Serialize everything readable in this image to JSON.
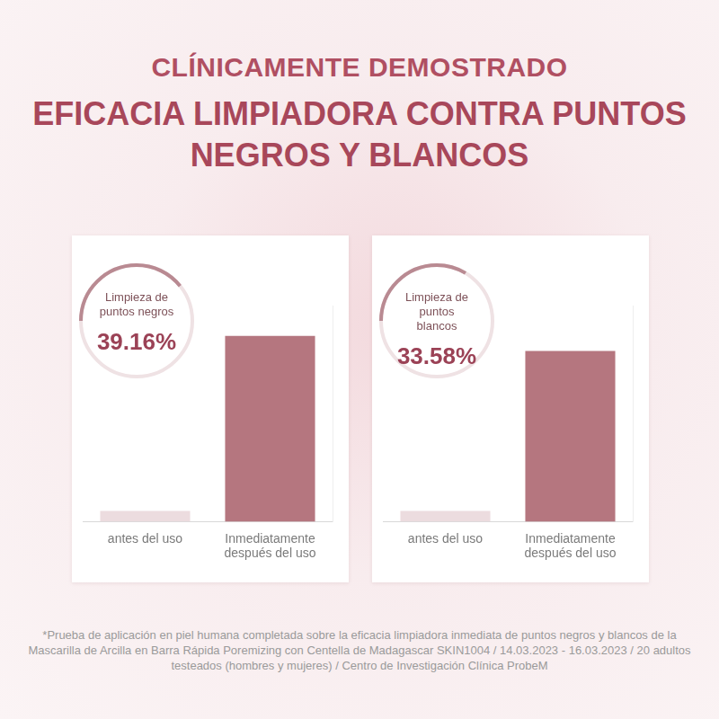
{
  "header": {
    "kicker": "CLÍNICAMENTE DEMOSTRADO",
    "title": "EFICACIA LIMPIADORA CONTRA PUNTOS NEGROS Y BLANCOS"
  },
  "chart_data": [
    {
      "type": "bar",
      "categories": [
        "antes del uso",
        "Inmediatamente después del uso"
      ],
      "values": [
        5,
        86
      ],
      "colors": [
        "#ecdcdf",
        "#b5767f"
      ],
      "ylim": [
        0,
        100
      ],
      "tick_labels": "x",
      "grid": false,
      "annotation": {
        "text": "Limpieza de puntos negros",
        "value": 39.16,
        "label": "39.16%"
      }
    },
    {
      "type": "bar",
      "categories": [
        "antes del uso",
        "Inmediatamente después del uso"
      ],
      "values": [
        5,
        79
      ],
      "colors": [
        "#ecdcdf",
        "#b5767f"
      ],
      "ylim": [
        0,
        100
      ],
      "tick_labels": "x",
      "grid": false,
      "annotation": {
        "text": "Limpieza de puntos blancos",
        "value": 33.58,
        "label": "33.58%"
      }
    }
  ],
  "footnote": "*Prueba de aplicación en piel humana completada sobre la eficacia limpiadora inmediata de puntos negros y blancos de la Mascarilla de Arcilla en Barra Rápida Poremizing con Centella de Madagascar SKIN1004 / 14.03.2023 - 16.03.2023 / 20 adultos testeados (hombres y mujeres) / Centro de Investigación Clínica ProbeM"
}
